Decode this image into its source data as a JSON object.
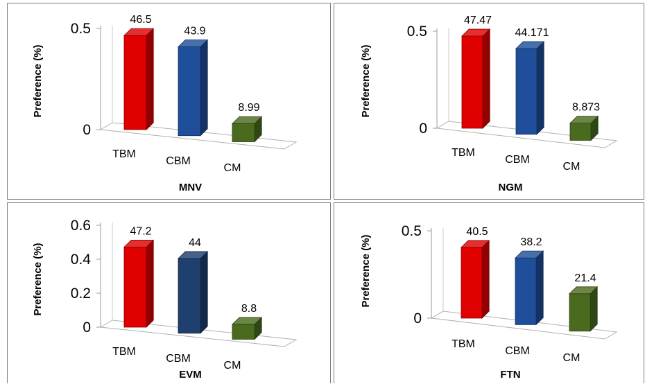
{
  "chart_data": [
    {
      "type": "bar",
      "title": "MNV",
      "ylabel": "Preference (%)",
      "categories": [
        "TBM",
        "CBM",
        "CM"
      ],
      "values": [
        46.5,
        43.9,
        8.99
      ],
      "data_labels": [
        "46.5",
        "43.9",
        "8.99"
      ],
      "yticks": [
        "0",
        "0.5"
      ],
      "colors": [
        "#e00000",
        "#1f4f9a",
        "#4a6b1e"
      ],
      "grid": false,
      "legend": "none"
    },
    {
      "type": "bar",
      "title": "NGM",
      "ylabel": "Preference (%)",
      "categories": [
        "TBM",
        "CBM",
        "CM"
      ],
      "values": [
        47.47,
        44.171,
        8.873
      ],
      "data_labels": [
        "47.47",
        "44.171",
        "8.873"
      ],
      "yticks": [
        "0",
        "0.5"
      ],
      "colors": [
        "#e00000",
        "#1f4f9a",
        "#4a6b1e"
      ],
      "grid": false,
      "legend": "none"
    },
    {
      "type": "bar",
      "title": "EVM",
      "ylabel": "Preference (%)",
      "categories": [
        "TBM",
        "CBM",
        "CM"
      ],
      "values": [
        47.2,
        44,
        8.8
      ],
      "data_labels": [
        "47.2",
        "44",
        "8.8"
      ],
      "yticks": [
        "0",
        "0.2",
        "0.4",
        "0.6"
      ],
      "colors": [
        "#e00000",
        "#1f3f6e",
        "#4a6b1e"
      ],
      "grid": false,
      "legend": "none"
    },
    {
      "type": "bar",
      "title": "FTN",
      "ylabel": "Preference (%)",
      "categories": [
        "TBM",
        "CBM",
        "CM"
      ],
      "values": [
        40.5,
        38.2,
        21.4
      ],
      "data_labels": [
        "40.5",
        "38.2",
        "21.4"
      ],
      "yticks": [
        "0",
        "0.5"
      ],
      "colors": [
        "#e00000",
        "#1f4f9a",
        "#4a6b1e"
      ],
      "grid": false,
      "legend": "none"
    }
  ]
}
